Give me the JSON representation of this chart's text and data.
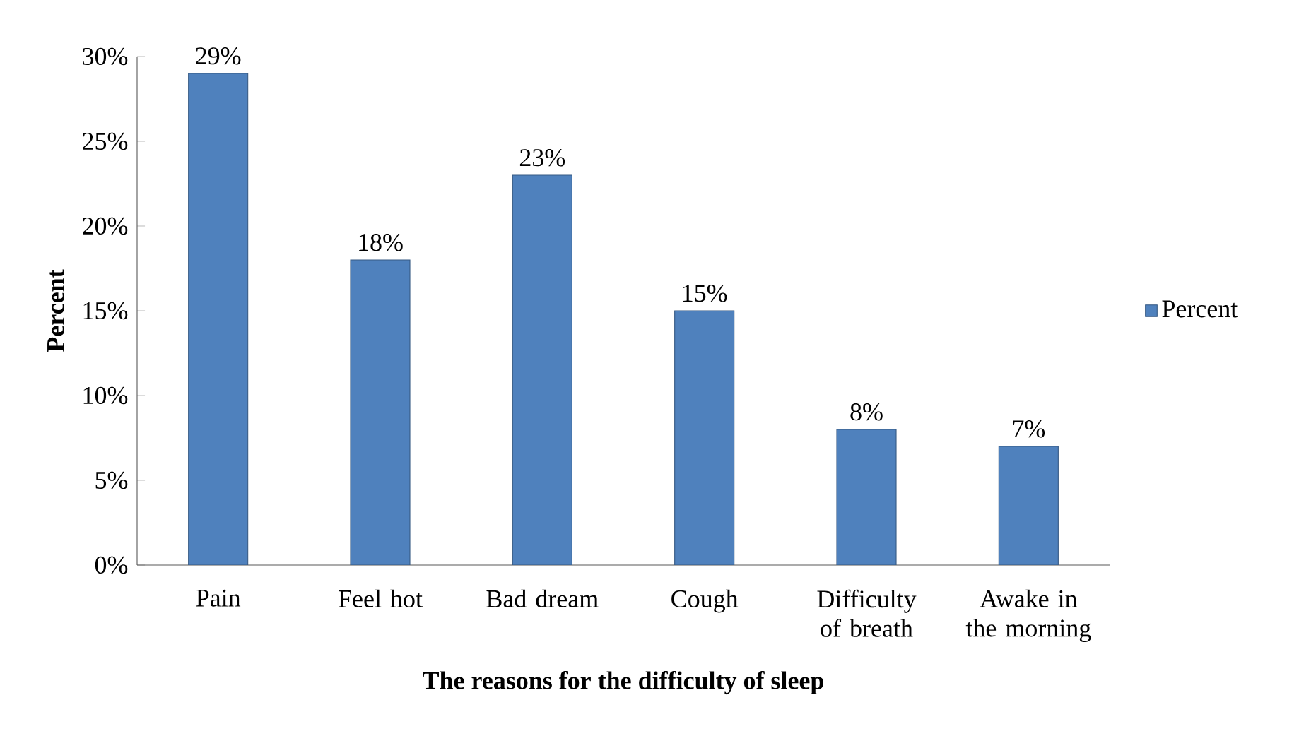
{
  "chart_data": {
    "type": "bar",
    "xlabel": "The reasons for the difficulty of sleep",
    "ylabel": "Percent",
    "categories": [
      "Pain",
      "Feel hot",
      "Bad dream",
      "Cough",
      "Difficulty of breath",
      "Awake in the morning"
    ],
    "series": [
      {
        "name": "Percent",
        "color": "#4f81bd",
        "values": [
          29,
          18,
          23,
          15,
          8,
          7
        ],
        "value_labels": [
          "29%",
          "18%",
          "23%",
          "15%",
          "8%",
          "7%"
        ]
      }
    ],
    "ylim": [
      0,
      30
    ],
    "yticks": [
      {
        "value": 0,
        "label": "0%"
      },
      {
        "value": 5,
        "label": "5%"
      },
      {
        "value": 10,
        "label": "10%"
      },
      {
        "value": 15,
        "label": "15%"
      },
      {
        "value": 20,
        "label": "20%"
      },
      {
        "value": 25,
        "label": "25%"
      },
      {
        "value": 30,
        "label": "30%"
      }
    ],
    "legend": "right"
  }
}
